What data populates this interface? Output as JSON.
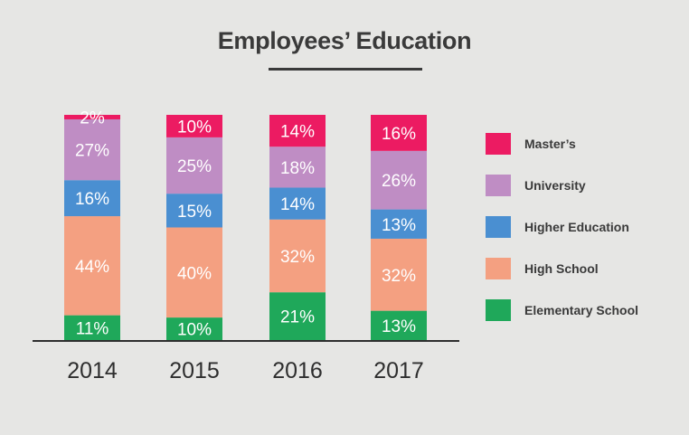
{
  "chart_data": {
    "type": "bar",
    "stacked": true,
    "title": "Employees’ Education",
    "categories": [
      "2014",
      "2015",
      "2016",
      "2017"
    ],
    "series": [
      {
        "name": "Elementary School",
        "color": "#1fa85a",
        "values": [
          11,
          10,
          21,
          13
        ],
        "labels": [
          "11%",
          "10%",
          "21%",
          "13%"
        ]
      },
      {
        "name": "High School",
        "color": "#f4a081",
        "values": [
          44,
          40,
          32,
          32
        ],
        "labels": [
          "44%",
          "40%",
          "32%",
          "32%"
        ]
      },
      {
        "name": "Higher Education",
        "color": "#4a8fd1",
        "values": [
          16,
          15,
          14,
          13
        ],
        "labels": [
          "16%",
          "15%",
          "14%",
          "13%"
        ]
      },
      {
        "name": "University",
        "color": "#bf8dc4",
        "values": [
          27,
          25,
          18,
          26
        ],
        "labels": [
          "27%",
          "25%",
          "18%",
          "26%"
        ]
      },
      {
        "name": "Master’s",
        "color": "#ec1b62",
        "values": [
          2,
          10,
          14,
          16
        ],
        "labels": [
          "2%",
          "10%",
          "14%",
          "16%"
        ]
      }
    ],
    "legend_order": [
      "Master’s",
      "University",
      "Higher Education",
      "High School",
      "Elementary School"
    ],
    "legend_position": "right",
    "grid": false
  }
}
